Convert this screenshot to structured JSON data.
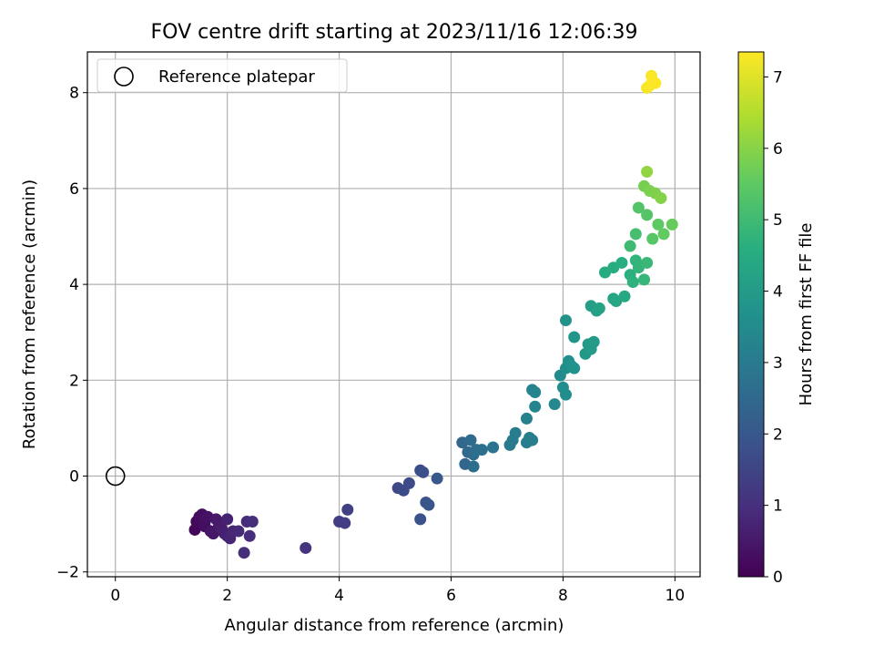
{
  "chart_data": {
    "type": "scatter",
    "title": "FOV centre drift starting at 2023/11/16 12:06:39",
    "xlabel": "Angular distance from reference (arcmin)",
    "ylabel": "Rotation from reference (arcmin)",
    "xlim": [
      -0.5,
      10.45
    ],
    "ylim": [
      -2.1,
      8.85
    ],
    "xticks": [
      0,
      2,
      4,
      6,
      8,
      10
    ],
    "yticks": [
      -2,
      0,
      2,
      4,
      6,
      8
    ],
    "grid": true,
    "legend": {
      "position": "top-left",
      "entries": [
        "Reference platepar"
      ]
    },
    "reference": {
      "x": 0,
      "y": 0,
      "label": "Reference platepar"
    },
    "colorbar": {
      "label": "Hours from first FF file",
      "range": [
        0,
        7.35
      ],
      "ticks": [
        0,
        1,
        2,
        3,
        4,
        5,
        6,
        7
      ],
      "colormap": "viridis"
    },
    "points": [
      {
        "x": 1.42,
        "y": -1.12,
        "c": 0.1
      },
      {
        "x": 1.45,
        "y": -0.95,
        "c": 0.15
      },
      {
        "x": 1.5,
        "y": -0.85,
        "c": 0.2
      },
      {
        "x": 1.55,
        "y": -0.8,
        "c": 0.25
      },
      {
        "x": 1.6,
        "y": -0.95,
        "c": 0.3
      },
      {
        "x": 1.6,
        "y": -1.05,
        "c": 0.3
      },
      {
        "x": 1.65,
        "y": -0.85,
        "c": 0.35
      },
      {
        "x": 1.7,
        "y": -1.15,
        "c": 0.4
      },
      {
        "x": 1.75,
        "y": -1.2,
        "c": 0.45
      },
      {
        "x": 1.8,
        "y": -0.9,
        "c": 0.5
      },
      {
        "x": 1.85,
        "y": -1.05,
        "c": 0.55
      },
      {
        "x": 1.9,
        "y": -1.1,
        "c": 0.6
      },
      {
        "x": 1.95,
        "y": -1.2,
        "c": 0.65
      },
      {
        "x": 2.0,
        "y": -0.9,
        "c": 0.7
      },
      {
        "x": 2.0,
        "y": -1.25,
        "c": 0.7
      },
      {
        "x": 2.05,
        "y": -1.3,
        "c": 0.75
      },
      {
        "x": 2.1,
        "y": -1.15,
        "c": 0.8
      },
      {
        "x": 2.2,
        "y": -1.15,
        "c": 0.85
      },
      {
        "x": 2.35,
        "y": -0.95,
        "c": 0.9
      },
      {
        "x": 2.4,
        "y": -1.25,
        "c": 0.95
      },
      {
        "x": 2.45,
        "y": -0.95,
        "c": 1.0
      },
      {
        "x": 2.3,
        "y": -1.6,
        "c": 1.0
      },
      {
        "x": 3.4,
        "y": -1.5,
        "c": 1.1
      },
      {
        "x": 4.0,
        "y": -0.95,
        "c": 1.3
      },
      {
        "x": 4.1,
        "y": -0.98,
        "c": 1.35
      },
      {
        "x": 4.15,
        "y": -0.7,
        "c": 1.4
      },
      {
        "x": 5.05,
        "y": -0.25,
        "c": 1.6
      },
      {
        "x": 5.15,
        "y": -0.3,
        "c": 1.65
      },
      {
        "x": 5.25,
        "y": -0.15,
        "c": 1.7
      },
      {
        "x": 5.45,
        "y": 0.12,
        "c": 1.75
      },
      {
        "x": 5.5,
        "y": 0.08,
        "c": 1.8
      },
      {
        "x": 5.45,
        "y": -0.9,
        "c": 1.85
      },
      {
        "x": 5.55,
        "y": -0.55,
        "c": 1.9
      },
      {
        "x": 5.6,
        "y": -0.6,
        "c": 1.95
      },
      {
        "x": 5.75,
        "y": -0.05,
        "c": 2.0
      },
      {
        "x": 6.2,
        "y": 0.7,
        "c": 2.4
      },
      {
        "x": 6.25,
        "y": 0.25,
        "c": 2.45
      },
      {
        "x": 6.3,
        "y": 0.5,
        "c": 2.5
      },
      {
        "x": 6.35,
        "y": 0.75,
        "c": 2.55
      },
      {
        "x": 6.4,
        "y": 0.2,
        "c": 2.6
      },
      {
        "x": 6.4,
        "y": 0.45,
        "c": 2.6
      },
      {
        "x": 6.45,
        "y": 0.55,
        "c": 2.65
      },
      {
        "x": 6.55,
        "y": 0.55,
        "c": 2.7
      },
      {
        "x": 6.75,
        "y": 0.6,
        "c": 2.8
      },
      {
        "x": 7.05,
        "y": 0.65,
        "c": 2.95
      },
      {
        "x": 7.1,
        "y": 0.75,
        "c": 3.0
      },
      {
        "x": 7.15,
        "y": 0.9,
        "c": 3.05
      },
      {
        "x": 7.35,
        "y": 0.7,
        "c": 3.1
      },
      {
        "x": 7.4,
        "y": 0.8,
        "c": 3.15
      },
      {
        "x": 7.45,
        "y": 0.75,
        "c": 3.15
      },
      {
        "x": 7.35,
        "y": 1.2,
        "c": 3.2
      },
      {
        "x": 7.45,
        "y": 1.8,
        "c": 3.25
      },
      {
        "x": 7.5,
        "y": 1.45,
        "c": 3.3
      },
      {
        "x": 7.5,
        "y": 1.75,
        "c": 3.3
      },
      {
        "x": 7.85,
        "y": 1.5,
        "c": 3.4
      },
      {
        "x": 7.95,
        "y": 2.1,
        "c": 3.5
      },
      {
        "x": 8.0,
        "y": 1.85,
        "c": 3.55
      },
      {
        "x": 8.05,
        "y": 1.7,
        "c": 3.6
      },
      {
        "x": 8.05,
        "y": 2.25,
        "c": 3.6
      },
      {
        "x": 8.1,
        "y": 2.4,
        "c": 3.65
      },
      {
        "x": 8.15,
        "y": 2.3,
        "c": 3.7
      },
      {
        "x": 8.2,
        "y": 2.25,
        "c": 3.7
      },
      {
        "x": 8.05,
        "y": 3.25,
        "c": 3.75
      },
      {
        "x": 8.2,
        "y": 2.9,
        "c": 3.8
      },
      {
        "x": 8.4,
        "y": 2.55,
        "c": 3.9
      },
      {
        "x": 8.45,
        "y": 2.75,
        "c": 3.95
      },
      {
        "x": 8.5,
        "y": 2.65,
        "c": 4.0
      },
      {
        "x": 8.55,
        "y": 2.8,
        "c": 4.0
      },
      {
        "x": 8.5,
        "y": 3.55,
        "c": 4.1
      },
      {
        "x": 8.6,
        "y": 3.45,
        "c": 4.15
      },
      {
        "x": 8.65,
        "y": 3.5,
        "c": 4.2
      },
      {
        "x": 8.9,
        "y": 3.7,
        "c": 4.3
      },
      {
        "x": 8.95,
        "y": 3.65,
        "c": 4.35
      },
      {
        "x": 9.1,
        "y": 3.75,
        "c": 4.4
      },
      {
        "x": 8.75,
        "y": 4.25,
        "c": 4.5
      },
      {
        "x": 8.9,
        "y": 4.35,
        "c": 4.55
      },
      {
        "x": 9.05,
        "y": 4.45,
        "c": 4.6
      },
      {
        "x": 9.2,
        "y": 4.2,
        "c": 4.65
      },
      {
        "x": 9.25,
        "y": 4.05,
        "c": 4.7
      },
      {
        "x": 9.3,
        "y": 4.5,
        "c": 4.75
      },
      {
        "x": 9.35,
        "y": 4.35,
        "c": 4.8
      },
      {
        "x": 9.45,
        "y": 4.1,
        "c": 4.85
      },
      {
        "x": 9.5,
        "y": 4.45,
        "c": 4.9
      },
      {
        "x": 9.2,
        "y": 4.8,
        "c": 5.0
      },
      {
        "x": 9.3,
        "y": 5.05,
        "c": 5.1
      },
      {
        "x": 9.35,
        "y": 5.6,
        "c": 5.3
      },
      {
        "x": 9.5,
        "y": 5.45,
        "c": 5.35
      },
      {
        "x": 9.6,
        "y": 4.95,
        "c": 5.4
      },
      {
        "x": 9.7,
        "y": 5.25,
        "c": 5.5
      },
      {
        "x": 9.8,
        "y": 5.05,
        "c": 5.55
      },
      {
        "x": 9.45,
        "y": 6.05,
        "c": 5.8
      },
      {
        "x": 9.55,
        "y": 5.95,
        "c": 5.85
      },
      {
        "x": 9.65,
        "y": 5.9,
        "c": 5.9
      },
      {
        "x": 9.75,
        "y": 5.8,
        "c": 5.95
      },
      {
        "x": 9.5,
        "y": 6.35,
        "c": 6.1
      },
      {
        "x": 9.95,
        "y": 5.25,
        "c": 5.6
      },
      {
        "x": 9.5,
        "y": 8.1,
        "c": 7.25
      },
      {
        "x": 9.58,
        "y": 8.35,
        "c": 7.3
      },
      {
        "x": 9.65,
        "y": 8.2,
        "c": 7.35
      },
      {
        "x": 9.55,
        "y": 8.15,
        "c": 7.3
      }
    ]
  }
}
